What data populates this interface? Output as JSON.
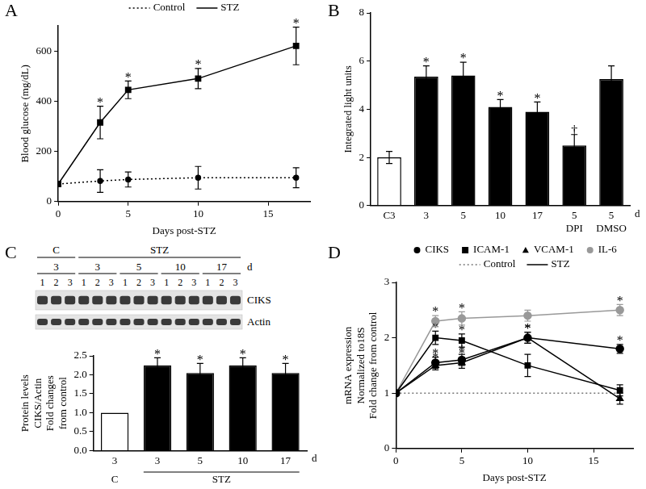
{
  "chart_data": [
    {
      "title": "A",
      "type": "line",
      "grid": false,
      "legend": "top",
      "x": [
        0,
        3,
        5,
        10,
        17
      ],
      "xlim": [
        0,
        18
      ],
      "xticks": [
        0,
        5,
        10,
        15
      ],
      "ylim": [
        0,
        700
      ],
      "yticks": [
        0,
        200,
        400,
        600
      ],
      "x_label": "Days post-STZ",
      "y_label": "Blood glucose (mg/dL)",
      "series": [
        {
          "name": "Control",
          "color": "#000000",
          "line_style": "dotted",
          "marker": "circle",
          "values": [
            70,
            82,
            88,
            95,
            95
          ],
          "errors": [
            0,
            45,
            30,
            45,
            40
          ]
        },
        {
          "name": "STZ",
          "color": "#000000",
          "line_style": "solid",
          "marker": "square",
          "values": [
            70,
            315,
            445,
            490,
            620
          ],
          "errors": [
            0,
            65,
            35,
            40,
            75
          ],
          "point_marks": [
            null,
            "*",
            "*",
            "*",
            "*"
          ]
        }
      ]
    },
    {
      "title": "B",
      "type": "bar",
      "grid": false,
      "categories": [
        "C3",
        "3",
        "5",
        "10",
        "17",
        [
          "5",
          "DPI"
        ],
        [
          "5",
          "DMSO"
        ]
      ],
      "values": [
        2.0,
        5.35,
        5.4,
        4.1,
        3.9,
        2.5,
        5.25
      ],
      "errors": [
        0.25,
        0.45,
        0.55,
        0.3,
        0.4,
        0.45,
        0.55
      ],
      "colors": [
        "#ffffff",
        "#000000",
        "#000000",
        "#000000",
        "#000000",
        "#000000",
        "#000000"
      ],
      "bar_marks": [
        null,
        "*",
        "*",
        "*",
        "*",
        "†",
        null
      ],
      "x_label": "d",
      "y_label": "Integrated light units",
      "ylim": [
        0,
        8
      ],
      "yticks": [
        0,
        2,
        4,
        6,
        8
      ]
    },
    {
      "title": "C",
      "type": "bar",
      "grid": false,
      "blot": {
        "conditions": [
          {
            "label": "C",
            "size": 1
          },
          {
            "label": "STZ",
            "size": 4
          }
        ],
        "groups": [
          {
            "label": "3",
            "lanes": [
              "1",
              "2",
              "3"
            ]
          },
          {
            "label": "3",
            "lanes": [
              "1",
              "2",
              "3"
            ]
          },
          {
            "label": "5",
            "lanes": [
              "1",
              "2",
              "3"
            ]
          },
          {
            "label": "10",
            "lanes": [
              "1",
              "2",
              "3"
            ]
          },
          {
            "label": "17",
            "lanes": [
              "1",
              "2",
              "3"
            ]
          }
        ],
        "unit": "d",
        "rows": [
          "CIKS",
          "Actin"
        ]
      },
      "categories": [
        "3",
        "3",
        "5",
        "10",
        "17"
      ],
      "groups": [
        {
          "label": "C",
          "size": 1
        },
        {
          "label": "STZ",
          "size": 4
        }
      ],
      "values": [
        1.0,
        2.25,
        2.05,
        2.25,
        2.05
      ],
      "errors": [
        0,
        0.2,
        0.25,
        0.2,
        0.25
      ],
      "colors": [
        "#ffffff",
        "#000000",
        "#000000",
        "#000000",
        "#000000"
      ],
      "bar_marks": [
        null,
        "*",
        "*",
        "*",
        "*"
      ],
      "x_label": "d",
      "y_label": [
        "Protein levels",
        "CIKS/Actin",
        "Fold changes",
        "from control"
      ],
      "ylim": [
        0,
        2.5
      ],
      "yticks": [
        {
          "value": 0,
          "label": "0.0"
        },
        {
          "value": 0.5,
          "label": "0.5"
        },
        {
          "value": 1,
          "label": "1.0"
        },
        {
          "value": 1.5,
          "label": "1.5"
        },
        {
          "value": 2,
          "label": "2.0"
        },
        {
          "value": 2.5,
          "label": "2.5"
        }
      ]
    },
    {
      "title": "D",
      "type": "line",
      "grid": false,
      "legend": "top",
      "x": [
        0,
        3,
        5,
        10,
        17
      ],
      "xlim": [
        0,
        18
      ],
      "xticks": [
        0,
        5,
        10,
        15
      ],
      "ylim": [
        0,
        3
      ],
      "yticks": [
        0,
        1,
        2,
        3
      ],
      "x_label": "Days post-STZ",
      "y_label": [
        "mRNA expression",
        "Normalized to18S",
        "Fold change from control"
      ],
      "series": [
        {
          "name": "CIKS",
          "color": "#000000",
          "line_style": "solid",
          "marker": "circle",
          "values": [
            1,
            1.55,
            1.6,
            2.0,
            1.8
          ],
          "errors": [
            0,
            0.1,
            0.1,
            0.1,
            0.08
          ],
          "point_marks": [
            null,
            "*",
            "*",
            "*",
            "*"
          ]
        },
        {
          "name": "ICAM-1",
          "color": "#000000",
          "line_style": "solid",
          "marker": "square",
          "values": [
            1,
            2.0,
            1.95,
            1.5,
            1.05
          ],
          "errors": [
            0,
            0.12,
            0.12,
            0.2,
            0.1
          ],
          "point_marks": [
            null,
            "*",
            "*",
            null,
            null
          ]
        },
        {
          "name": "VCAM-1",
          "color": "#000000",
          "line_style": "solid",
          "marker": "triangle",
          "values": [
            1,
            1.5,
            1.55,
            2.0,
            0.9
          ],
          "errors": [
            0,
            0.08,
            0.1,
            0.1,
            0.1
          ],
          "point_marks": [
            null,
            "*",
            "*",
            "*",
            null
          ]
        },
        {
          "name": "IL-6",
          "color": "#999999",
          "line_style": "solid",
          "marker": "circle",
          "values": [
            1,
            2.3,
            2.35,
            2.4,
            2.5
          ],
          "errors": [
            0,
            0.1,
            0.12,
            0.1,
            0.1
          ],
          "point_marks": [
            null,
            "*",
            "*",
            null,
            "*"
          ]
        },
        {
          "name": "Control",
          "color": "#777777",
          "line_style": "dotted",
          "marker": "none",
          "values": [
            1,
            1,
            1,
            1,
            1
          ]
        }
      ],
      "line_legend": [
        {
          "name": "STZ",
          "line_style": "solid"
        }
      ]
    }
  ]
}
